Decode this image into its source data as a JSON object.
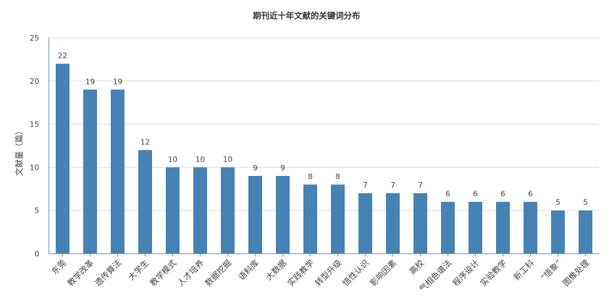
{
  "chart_data": {
    "type": "bar",
    "title": "期刊近十年文献的关键词分布",
    "xlabel": "",
    "ylabel": "文献量（篇）",
    "ylim": [
      0,
      25
    ],
    "yticks": [
      0,
      5,
      10,
      15,
      20,
      25
    ],
    "grid": true,
    "legend": "none",
    "categories": [
      "东莞",
      "教学改革",
      "遗传算法",
      "大学生",
      "教学模式",
      "人才培养",
      "数据挖掘",
      "语料库",
      "大数据",
      "实践教学",
      "转型升级",
      "悟性认识",
      "影响因素",
      "高校",
      "气相色谱法",
      "程序设计",
      "实验教学",
      "新工科",
      "“悟象”",
      "图像处理"
    ],
    "values": [
      22,
      19,
      19,
      12,
      10,
      10,
      10,
      9,
      9,
      8,
      8,
      7,
      7,
      7,
      6,
      6,
      6,
      6,
      5,
      5
    ],
    "colors": {
      "bar": "#4682b4",
      "axis": "#5a8a9a",
      "grid": "#dcdcdc",
      "text": "#444444"
    }
  }
}
